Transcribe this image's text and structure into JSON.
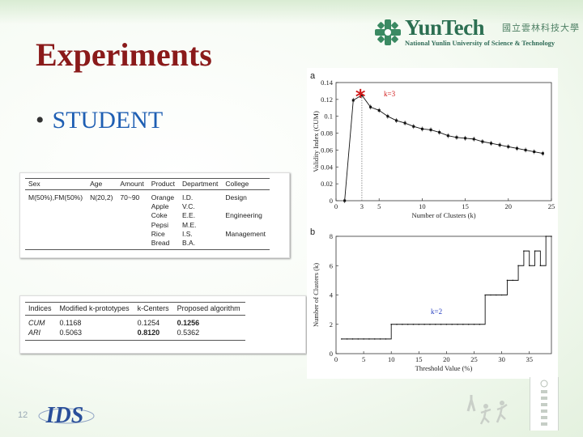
{
  "slide": {
    "title": "Experiments",
    "bullet": "STUDENT",
    "page_number": "12"
  },
  "logo": {
    "name": "YunTech",
    "chinese": "國立雲林科技大學",
    "english": "National Yunlin University of Science & Technology"
  },
  "footer_logo": {
    "text": "IDS"
  },
  "table_attributes": {
    "headers": [
      "Sex",
      "Age",
      "Amount",
      "Product",
      "Department",
      "College"
    ],
    "rows": [
      [
        "M(50%),FM(50%)",
        "N(20,2)",
        "70~90",
        "Orange",
        "I.D.",
        "Design"
      ],
      [
        "",
        "",
        "",
        "Apple",
        "V.C.",
        ""
      ],
      [
        "",
        "",
        "",
        "Coke",
        "E.E.",
        "Engineering"
      ],
      [
        "",
        "",
        "",
        "Pepsi",
        "M.E.",
        ""
      ],
      [
        "",
        "",
        "",
        "Rice",
        "I.S.",
        "Management"
      ],
      [
        "",
        "",
        "",
        "Bread",
        "B.A.",
        ""
      ]
    ]
  },
  "table_results": {
    "headers": [
      "Indices",
      "Modified k-prototypes",
      "k-Centers",
      "Proposed algorithm"
    ],
    "rows": [
      [
        "CUM",
        "0.1168",
        "0.1254",
        "0.1256"
      ],
      [
        "ARI",
        "0.5063",
        "0.8120",
        "0.5362"
      ]
    ]
  },
  "chart_data": [
    {
      "type": "line",
      "panel_label": "a",
      "xlabel": "Number of Clusters (k)",
      "ylabel": "Validity Index (CUM)",
      "xlim": [
        0,
        25
      ],
      "ylim": [
        0,
        0.14
      ],
      "xticks": [
        "0",
        "5",
        "10",
        "15",
        "20",
        "25"
      ],
      "extra_xtick": "3",
      "yticks": [
        "0",
        "0.02",
        "0.04",
        "0.06",
        "0.08",
        "0.1",
        "0.12",
        "0.14"
      ],
      "annotation": "k=3",
      "annotation_color": "#d01818",
      "line_color": "#111111",
      "x": [
        1,
        2,
        3,
        4,
        5,
        6,
        7,
        8,
        9,
        10,
        11,
        12,
        13,
        14,
        15,
        16,
        17,
        18,
        19,
        20,
        21,
        22,
        23,
        24
      ],
      "values": [
        0.0,
        0.119,
        0.125,
        0.111,
        0.107,
        0.1,
        0.095,
        0.092,
        0.088,
        0.085,
        0.084,
        0.081,
        0.077,
        0.075,
        0.074,
        0.073,
        0.07,
        0.068,
        0.066,
        0.064,
        0.062,
        0.06,
        0.058,
        0.056
      ]
    },
    {
      "type": "line",
      "panel_label": "b",
      "xlabel": "Threshold Value (%)",
      "ylabel": "Number of Clusters (k)",
      "xlim": [
        0,
        39
      ],
      "ylim": [
        0,
        8
      ],
      "xticks": [
        "0",
        "5",
        "10",
        "15",
        "20",
        "25",
        "30",
        "35"
      ],
      "yticks": [
        "0",
        "2",
        "4",
        "6",
        "8"
      ],
      "annotation": "k=2",
      "annotation_color": "#2840c0",
      "line_color": "#111111",
      "x": [
        1,
        2,
        3,
        4,
        5,
        6,
        7,
        8,
        9,
        10,
        11,
        12,
        13,
        14,
        15,
        16,
        17,
        18,
        19,
        20,
        21,
        22,
        23,
        24,
        25,
        26,
        27,
        28,
        29,
        30,
        31,
        32,
        33,
        34,
        35,
        36,
        37,
        38,
        39
      ],
      "values": [
        1,
        1,
        1,
        1,
        1,
        1,
        1,
        1,
        1,
        2,
        2,
        2,
        2,
        2,
        2,
        2,
        2,
        2,
        2,
        2,
        2,
        2,
        2,
        2,
        2,
        2,
        4,
        4,
        4,
        4,
        5,
        5,
        6,
        7,
        6,
        7,
        6,
        8,
        8
      ]
    }
  ]
}
